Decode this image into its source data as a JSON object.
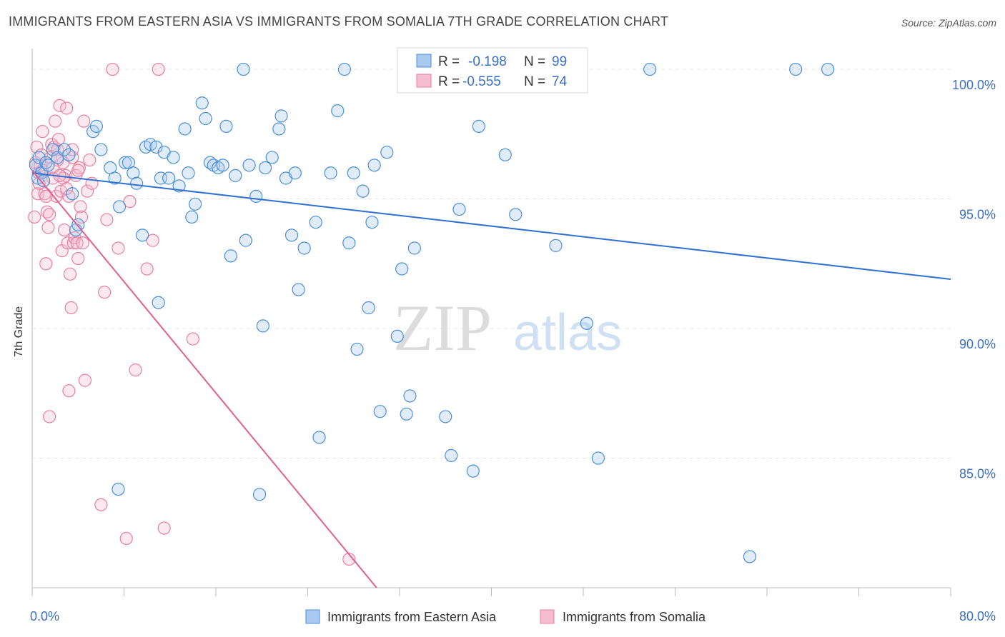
{
  "title": "IMMIGRANTS FROM EASTERN ASIA VS IMMIGRANTS FROM SOMALIA 7TH GRADE CORRELATION CHART",
  "source": "Source: ZipAtlas.com",
  "watermark": {
    "zip": "ZIP",
    "atlas": "atlas"
  },
  "stats": {
    "r_label": "R =",
    "n_label": "N =",
    "eastern_asia": {
      "r": "-0.198",
      "n": "99"
    },
    "somalia": {
      "r": "-0.555",
      "n": "74"
    }
  },
  "colors": {
    "eastern_asia": "#4a90d9",
    "somalia": "#e87fa0",
    "eastern_asia_line": "#2f6fd0",
    "somalia_line": "#e0608f",
    "axis_text": "#3a6fc4"
  },
  "chart_data": {
    "type": "scatter",
    "title": "IMMIGRANTS FROM EASTERN ASIA VS IMMIGRANTS FROM SOMALIA 7TH GRADE CORRELATION CHART",
    "xlabel": "",
    "ylabel": "7th Grade",
    "xlim": [
      0,
      80
    ],
    "ylim": [
      80,
      100.8
    ],
    "x_tick_labels": [
      "0.0%",
      "80.0%"
    ],
    "y_ticks": [
      85,
      90,
      95,
      100
    ],
    "y_tick_labels": [
      "85.0%",
      "90.0%",
      "95.0%",
      "100.0%"
    ],
    "legend": [
      "Immigrants from Eastern Asia",
      "Immigrants from Somalia"
    ],
    "legend_position": "bottom",
    "series": [
      {
        "name": "Immigrants from Eastern Asia",
        "trend": {
          "x0": 0,
          "y0": 96.0,
          "x1": 80,
          "y1": 91.9
        },
        "points": [
          [
            0.3,
            96.3
          ],
          [
            0.5,
            95.8
          ],
          [
            0.6,
            96.6
          ],
          [
            0.8,
            96.0
          ],
          [
            1.0,
            95.7
          ],
          [
            1.2,
            96.4
          ],
          [
            1.4,
            96.3
          ],
          [
            1.8,
            96.9
          ],
          [
            2.2,
            96.6
          ],
          [
            2.8,
            96.9
          ],
          [
            3.2,
            96.7
          ],
          [
            3.5,
            95.2
          ],
          [
            3.8,
            93.8
          ],
          [
            4.0,
            94.0
          ],
          [
            5.3,
            97.6
          ],
          [
            5.6,
            97.8
          ],
          [
            6.0,
            96.9
          ],
          [
            6.8,
            96.2
          ],
          [
            7.2,
            95.8
          ],
          [
            7.6,
            94.7
          ],
          [
            8.1,
            96.4
          ],
          [
            8.4,
            96.4
          ],
          [
            8.8,
            96.0
          ],
          [
            9.1,
            95.6
          ],
          [
            9.6,
            93.6
          ],
          [
            9.9,
            97.0
          ],
          [
            10.3,
            97.1
          ],
          [
            10.8,
            97.0
          ],
          [
            11.2,
            95.8
          ],
          [
            11.5,
            96.8
          ],
          [
            11.9,
            95.8
          ],
          [
            12.3,
            96.6
          ],
          [
            12.8,
            95.5
          ],
          [
            13.3,
            97.7
          ],
          [
            13.6,
            96.0
          ],
          [
            13.9,
            94.3
          ],
          [
            14.2,
            94.8
          ],
          [
            14.8,
            98.7
          ],
          [
            15.1,
            98.1
          ],
          [
            15.5,
            96.4
          ],
          [
            15.8,
            96.3
          ],
          [
            16.2,
            96.2
          ],
          [
            16.6,
            96.3
          ],
          [
            16.9,
            97.8
          ],
          [
            17.3,
            92.8
          ],
          [
            17.7,
            95.9
          ],
          [
            18.4,
            100.0
          ],
          [
            18.6,
            93.4
          ],
          [
            18.9,
            96.3
          ],
          [
            19.5,
            95.1
          ],
          [
            20.1,
            90.1
          ],
          [
            20.3,
            96.2
          ],
          [
            20.9,
            96.6
          ],
          [
            21.5,
            97.7
          ],
          [
            21.7,
            98.2
          ],
          [
            22.1,
            95.8
          ],
          [
            22.6,
            93.6
          ],
          [
            22.9,
            96.0
          ],
          [
            23.2,
            91.5
          ],
          [
            23.7,
            93.1
          ],
          [
            24.7,
            94.1
          ],
          [
            25.0,
            85.8
          ],
          [
            26.0,
            96.0
          ],
          [
            26.6,
            98.4
          ],
          [
            27.2,
            100.0
          ],
          [
            27.6,
            93.3
          ],
          [
            28.0,
            96.0
          ],
          [
            28.3,
            89.2
          ],
          [
            28.8,
            95.3
          ],
          [
            29.3,
            90.8
          ],
          [
            29.6,
            94.1
          ],
          [
            29.8,
            96.3
          ],
          [
            30.3,
            86.8
          ],
          [
            30.9,
            96.8
          ],
          [
            31.8,
            89.7
          ],
          [
            32.2,
            92.3
          ],
          [
            32.6,
            86.7
          ],
          [
            32.9,
            87.4
          ],
          [
            33.3,
            93.1
          ],
          [
            34.8,
            100.0
          ],
          [
            35.1,
            100.0
          ],
          [
            36.5,
            85.1
          ],
          [
            37.2,
            94.6
          ],
          [
            38.4,
            84.5
          ],
          [
            38.9,
            97.8
          ],
          [
            41.2,
            96.7
          ],
          [
            42.1,
            94.4
          ],
          [
            43.4,
            100.0
          ],
          [
            45.6,
            93.2
          ],
          [
            48.3,
            90.2
          ],
          [
            49.3,
            85.0
          ],
          [
            53.8,
            100.0
          ],
          [
            62.5,
            81.2
          ],
          [
            66.5,
            100.0
          ],
          [
            69.3,
            100.0
          ],
          [
            7.5,
            83.8
          ],
          [
            11.0,
            91.0
          ],
          [
            19.8,
            83.6
          ],
          [
            36.0,
            86.6
          ]
        ]
      },
      {
        "name": "Immigrants from Somalia",
        "trend": {
          "x0": 0,
          "y0": 96.1,
          "x1": 30.0,
          "y1": 80.0
        },
        "points": [
          [
            0.2,
            94.3
          ],
          [
            0.3,
            96.4
          ],
          [
            0.4,
            97.0
          ],
          [
            0.5,
            95.2
          ],
          [
            0.6,
            96.0
          ],
          [
            0.7,
            96.3
          ],
          [
            0.8,
            96.7
          ],
          [
            0.9,
            97.6
          ],
          [
            1.0,
            95.7
          ],
          [
            1.1,
            95.2
          ],
          [
            1.2,
            92.5
          ],
          [
            1.3,
            94.5
          ],
          [
            1.4,
            93.9
          ],
          [
            1.5,
            94.4
          ],
          [
            1.6,
            96.6
          ],
          [
            1.7,
            97.1
          ],
          [
            1.8,
            95.8
          ],
          [
            1.9,
            97.0
          ],
          [
            2.0,
            98.0
          ],
          [
            2.1,
            95.1
          ],
          [
            2.2,
            96.9
          ],
          [
            2.3,
            97.3
          ],
          [
            2.4,
            98.6
          ],
          [
            2.5,
            95.3
          ],
          [
            2.6,
            93.0
          ],
          [
            2.7,
            96.4
          ],
          [
            2.8,
            93.8
          ],
          [
            2.9,
            95.9
          ],
          [
            3.0,
            98.5
          ],
          [
            3.1,
            93.3
          ],
          [
            3.2,
            95.1
          ],
          [
            3.3,
            92.1
          ],
          [
            3.4,
            90.8
          ],
          [
            3.5,
            96.6
          ],
          [
            3.6,
            93.3
          ],
          [
            3.7,
            93.5
          ],
          [
            3.8,
            95.9
          ],
          [
            3.9,
            93.3
          ],
          [
            4.0,
            92.7
          ],
          [
            4.1,
            96.2
          ],
          [
            4.2,
            94.7
          ],
          [
            4.3,
            94.3
          ],
          [
            4.4,
            93.3
          ],
          [
            4.5,
            98.0
          ],
          [
            4.6,
            88.0
          ],
          [
            4.8,
            95.3
          ],
          [
            5.0,
            96.5
          ],
          [
            5.2,
            95.6
          ],
          [
            6.0,
            83.2
          ],
          [
            6.3,
            91.4
          ],
          [
            6.5,
            94.2
          ],
          [
            7.0,
            100.0
          ],
          [
            7.5,
            93.1
          ],
          [
            8.2,
            81.9
          ],
          [
            8.5,
            94.9
          ],
          [
            9.0,
            88.4
          ],
          [
            10.0,
            92.3
          ],
          [
            10.5,
            93.4
          ],
          [
            11.0,
            100.0
          ],
          [
            11.5,
            82.3
          ],
          [
            14.0,
            89.6
          ],
          [
            1.5,
            86.6
          ],
          [
            3.2,
            87.6
          ],
          [
            27.6,
            81.1
          ],
          [
            0.9,
            96.1
          ],
          [
            1.2,
            95.1
          ],
          [
            2.2,
            96.5
          ],
          [
            2.7,
            95.8
          ],
          [
            3.5,
            96.9
          ],
          [
            0.6,
            95.6
          ],
          [
            1.8,
            96.2
          ],
          [
            2.4,
            95.9
          ],
          [
            3.0,
            95.4
          ],
          [
            4.0,
            96.1
          ]
        ]
      }
    ]
  }
}
